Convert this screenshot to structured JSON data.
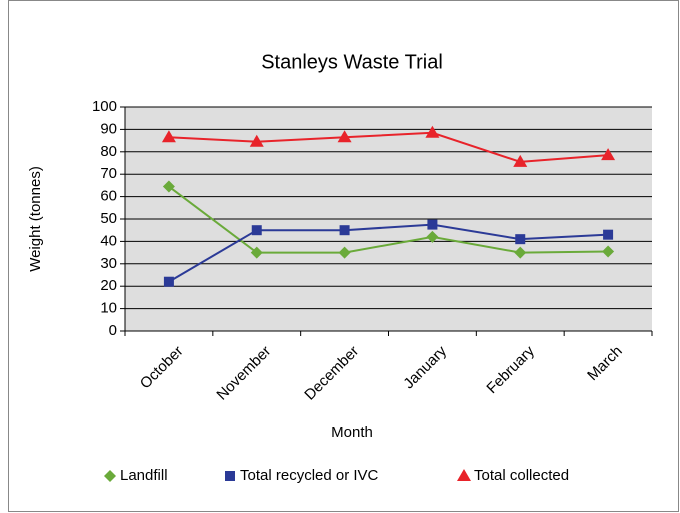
{
  "chart_data": {
    "type": "line",
    "title": "Stanleys Waste Trial",
    "x_label": "Month",
    "y_label": "Weight (tonnes)",
    "categories": [
      "October",
      "November",
      "December",
      "January",
      "February",
      "March"
    ],
    "series": [
      {
        "name": "Landfill",
        "color": "#6aaa3a",
        "marker": "diamond",
        "values": [
          64.5,
          35,
          35,
          42,
          35,
          35.5
        ]
      },
      {
        "name": "Total recycled or IVC",
        "color": "#2b3a97",
        "marker": "square",
        "values": [
          22,
          45,
          45,
          47.5,
          41,
          43
        ]
      },
      {
        "name": "Total collected",
        "color": "#e8232a",
        "marker": "triangle",
        "values": [
          86.5,
          84.5,
          86.5,
          88.5,
          75.5,
          78.5
        ]
      }
    ],
    "ylim": [
      0,
      100
    ],
    "yticks": [
      0,
      10,
      20,
      30,
      40,
      50,
      60,
      70,
      80,
      90,
      100
    ],
    "grid": true,
    "legend": "bottom"
  }
}
